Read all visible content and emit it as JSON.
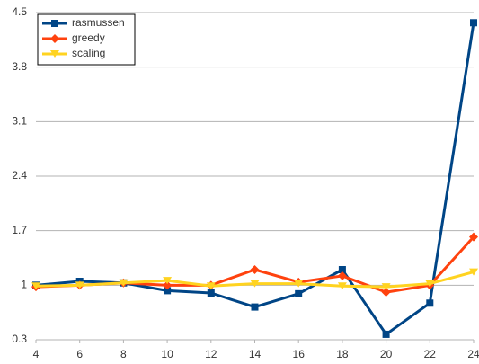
{
  "chart_data": {
    "type": "line",
    "x": [
      4,
      6,
      8,
      10,
      12,
      14,
      16,
      18,
      20,
      22,
      24
    ],
    "series": [
      {
        "name": "rasmussen",
        "color": "#004586",
        "marker": "square",
        "values": [
          1.0,
          1.05,
          1.03,
          0.93,
          0.9,
          0.72,
          0.89,
          1.2,
          0.37,
          0.77,
          4.37
        ]
      },
      {
        "name": "greedy",
        "color": "#ff420e",
        "marker": "diamond",
        "values": [
          0.98,
          1.0,
          1.03,
          1.0,
          1.0,
          1.2,
          1.04,
          1.12,
          0.91,
          1.0,
          1.62
        ]
      },
      {
        "name": "scaling",
        "color": "#ffd320",
        "marker": "triangle-down",
        "values": [
          0.99,
          1.0,
          1.03,
          1.06,
          0.99,
          1.02,
          1.02,
          0.99,
          0.98,
          1.02,
          1.17
        ]
      }
    ],
    "xlim": [
      4,
      24
    ],
    "xticks": [
      4,
      6,
      8,
      10,
      12,
      14,
      16,
      18,
      20,
      22,
      24
    ],
    "ylim": [
      0.3,
      4.5
    ],
    "yticks": [
      0.3,
      1,
      1.7,
      2.4,
      3.1,
      3.8,
      4.5
    ],
    "grid": true,
    "legend": "top-left"
  }
}
